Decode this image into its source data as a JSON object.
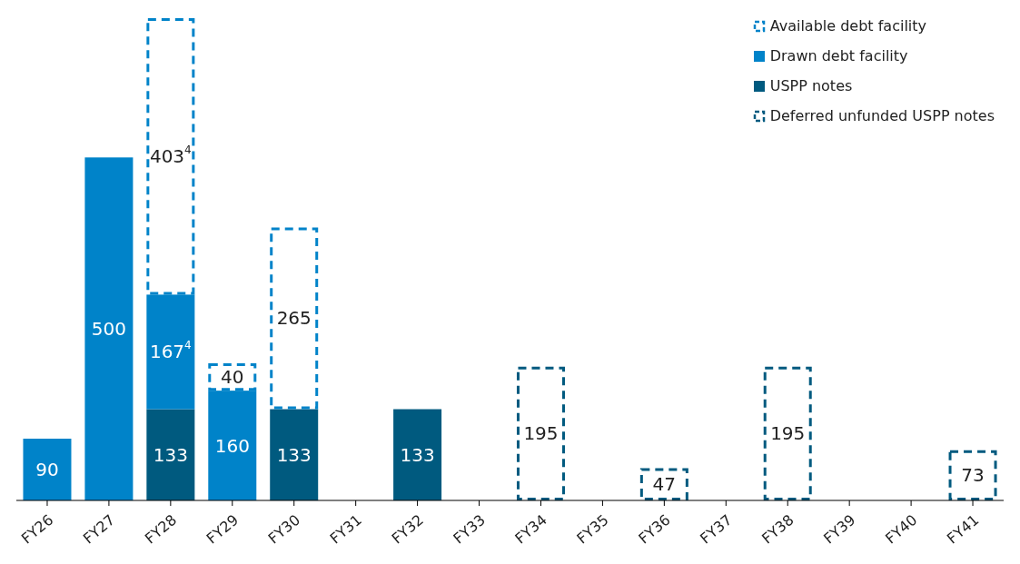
{
  "chart_data": {
    "type": "bar",
    "stacked": true,
    "legend": "top right",
    "categories": [
      "FY26",
      "FY27",
      "FY28",
      "FY29",
      "FY30",
      "FY31",
      "FY32",
      "FY33",
      "FY34",
      "FY35",
      "FY36",
      "FY37",
      "FY38",
      "FY39",
      "FY40",
      "FY41"
    ],
    "series": [
      {
        "name": "Deferred unfunded USPP notes",
        "color": "#005a7f",
        "line_style": "dashed",
        "values": [
          null,
          null,
          null,
          null,
          null,
          null,
          null,
          null,
          195,
          null,
          47,
          null,
          195,
          null,
          null,
          73
        ],
        "value_labels": [
          null,
          null,
          null,
          null,
          null,
          null,
          null,
          null,
          "195",
          null,
          "47",
          null,
          "195",
          null,
          null,
          "73"
        ]
      },
      {
        "name": "USPP notes",
        "color": "#005a7f",
        "line_style": "solid",
        "values": [
          null,
          null,
          133,
          null,
          133,
          null,
          133,
          null,
          null,
          null,
          null,
          null,
          null,
          null,
          null,
          null
        ],
        "value_labels": [
          null,
          null,
          "133",
          null,
          "133",
          null,
          "133",
          null,
          null,
          null,
          null,
          null,
          null,
          null,
          null,
          null
        ]
      },
      {
        "name": "Drawn debt facility",
        "color": "#0083c9",
        "line_style": "solid",
        "values": [
          90,
          500,
          167,
          160,
          null,
          null,
          null,
          null,
          null,
          null,
          null,
          null,
          null,
          null,
          null,
          null
        ],
        "value_labels": [
          "90",
          "500",
          "167$^{4}$",
          "160",
          null,
          null,
          null,
          null,
          null,
          null,
          null,
          null,
          null,
          null,
          null,
          null
        ]
      },
      {
        "name": "Available debt facility",
        "color": "#0083c9",
        "line_style": "dashed",
        "values": [
          null,
          null,
          403,
          40,
          265,
          null,
          null,
          null,
          null,
          null,
          null,
          null,
          null,
          null,
          null,
          null
        ],
        "value_labels": [
          null,
          null,
          "403$^{4}$",
          "40",
          "265",
          null,
          null,
          null,
          null,
          null,
          null,
          null,
          null,
          null,
          null,
          null
        ]
      }
    ]
  }
}
